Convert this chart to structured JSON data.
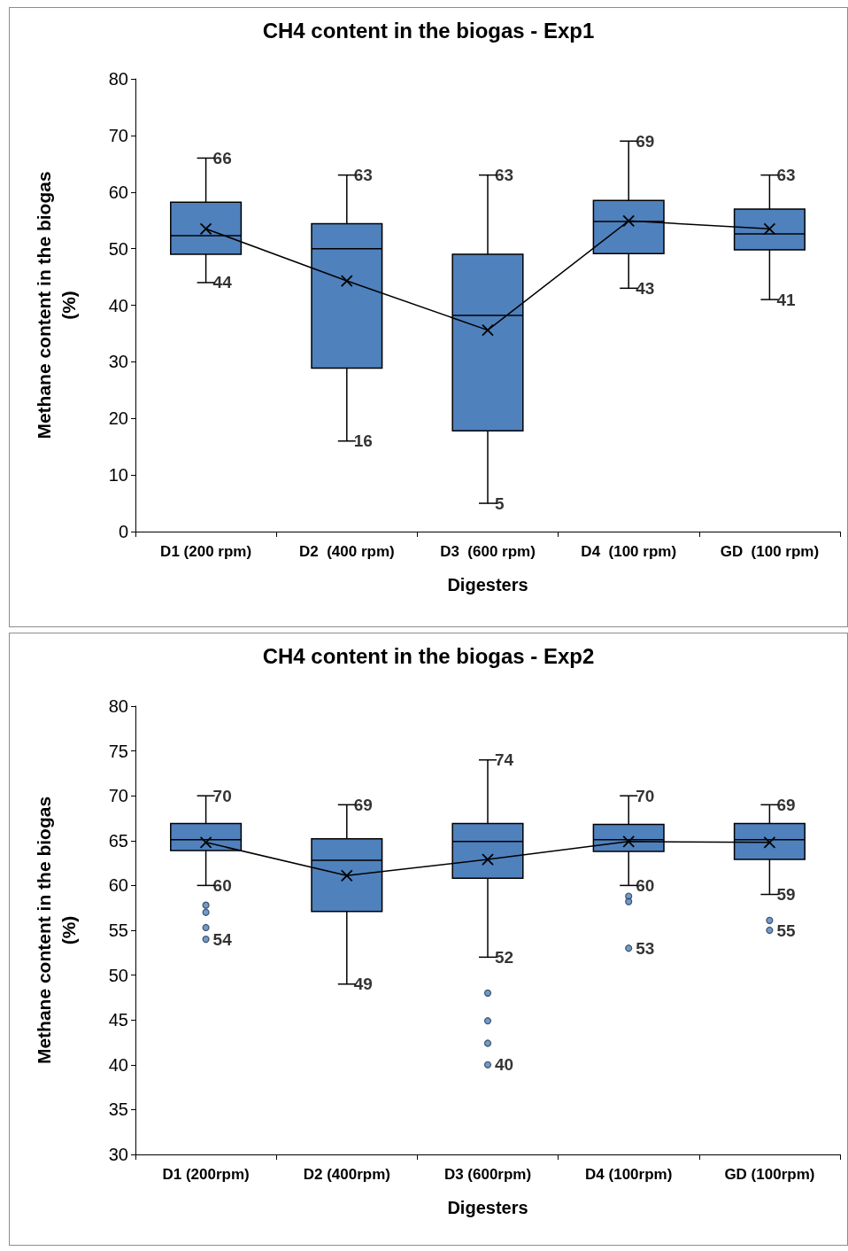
{
  "chart_data": [
    {
      "type": "box",
      "title": "CH4 content in the biogas - Exp1",
      "xlabel": "Digesters",
      "ylabel": "Methane content in the biogas (%)",
      "categories": [
        "D1 (200 rpm)",
        "D2  (400 rpm)",
        "D3  (600 rpm)",
        "D4  (100 rpm)",
        "GD  (100 rpm)"
      ],
      "ylim": [
        0,
        80
      ],
      "yticks": [
        0,
        10,
        20,
        30,
        40,
        50,
        60,
        70,
        80
      ],
      "grid": false,
      "series": [
        {
          "color": "#4f81bd",
          "boxes": [
            {
              "low": 44,
              "q1": 49,
              "median": 52.3,
              "q3": 58.2,
              "high": 66
            },
            {
              "low": 16,
              "q1": 28.9,
              "median": 50,
              "q3": 54.4,
              "high": 63
            },
            {
              "low": 5,
              "q1": 17.8,
              "median": 38.2,
              "q3": 49,
              "high": 63
            },
            {
              "low": 43,
              "q1": 49.1,
              "median": 54.8,
              "q3": 58.5,
              "high": 69
            },
            {
              "low": 41,
              "q1": 49.8,
              "median": 52.6,
              "q3": 57,
              "high": 63
            }
          ]
        },
        {
          "type": "line",
          "color": "#000000",
          "marker": "cross",
          "values": [
            53.5,
            44.3,
            35.6,
            54.9,
            53.5
          ]
        }
      ],
      "annotations": [
        {
          "text": "66",
          "x": "D1 (200 rpm)",
          "y": 66
        },
        {
          "text": "44",
          "x": "D1 (200 rpm)",
          "y": 44
        },
        {
          "text": "63",
          "x": "D2  (400 rpm)",
          "y": 63
        },
        {
          "text": "16",
          "x": "D2  (400 rpm)",
          "y": 16
        },
        {
          "text": "63",
          "x": "D3  (600 rpm)",
          "y": 63
        },
        {
          "text": "5",
          "x": "D3  (600 rpm)",
          "y": 5
        },
        {
          "text": "69",
          "x": "D4  (100 rpm)",
          "y": 69
        },
        {
          "text": "43",
          "x": "D4  (100 rpm)",
          "y": 43
        },
        {
          "text": "63",
          "x": "GD  (100 rpm)",
          "y": 63
        },
        {
          "text": "41",
          "x": "GD  (100 rpm)",
          "y": 41
        }
      ]
    },
    {
      "type": "box",
      "title": "CH4 content in the biogas - Exp2",
      "xlabel": "Digesters",
      "ylabel": "Methane content in the biogas (%)",
      "categories": [
        "D1 (200rpm)",
        "D2 (400rpm)",
        "D3 (600rpm)",
        "D4 (100rpm)",
        "GD (100rpm)"
      ],
      "ylim": [
        30,
        80
      ],
      "yticks": [
        30,
        35,
        40,
        45,
        50,
        55,
        60,
        65,
        70,
        75,
        80
      ],
      "grid": false,
      "series": [
        {
          "color": "#4f81bd",
          "boxes": [
            {
              "low": 60,
              "q1": 63.9,
              "median": 65.1,
              "q3": 66.9,
              "high": 70
            },
            {
              "low": 49,
              "q1": 57.1,
              "median": 62.8,
              "q3": 65.2,
              "high": 69
            },
            {
              "low": 52,
              "q1": 60.8,
              "median": 64.9,
              "q3": 66.9,
              "high": 74
            },
            {
              "low": 60,
              "q1": 63.8,
              "median": 65.1,
              "q3": 66.8,
              "high": 70
            },
            {
              "low": 59,
              "q1": 62.9,
              "median": 65.1,
              "q3": 66.9,
              "high": 69
            }
          ]
        },
        {
          "type": "scatter",
          "color": "#4f81bd",
          "marker": "circle",
          "x": [
            "D1 (200rpm)",
            "D1 (200rpm)",
            "D1 (200rpm)",
            "D1 (200rpm)",
            "D3 (600rpm)",
            "D3 (600rpm)",
            "D3 (600rpm)",
            "D3 (600rpm)",
            "D4 (100rpm)",
            "D4 (100rpm)",
            "D4 (100rpm)",
            "GD (100rpm)",
            "GD (100rpm)"
          ],
          "values": [
            57.8,
            57,
            55.3,
            54,
            48,
            44.9,
            42.4,
            40,
            58.8,
            58.2,
            53,
            56.1,
            55
          ]
        },
        {
          "type": "line",
          "color": "#000000",
          "marker": "cross",
          "values": [
            64.8,
            61.1,
            62.9,
            64.9,
            64.8
          ]
        }
      ],
      "annotations": [
        {
          "text": "70",
          "x": "D1 (200rpm)",
          "y": 70
        },
        {
          "text": "60",
          "x": "D1 (200rpm)",
          "y": 60
        },
        {
          "text": "54",
          "x": "D1 (200rpm)",
          "y": 54
        },
        {
          "text": "69",
          "x": "D2 (400rpm)",
          "y": 69
        },
        {
          "text": "49",
          "x": "D2 (400rpm)",
          "y": 49
        },
        {
          "text": "74",
          "x": "D3 (600rpm)",
          "y": 74
        },
        {
          "text": "52",
          "x": "D3 (600rpm)",
          "y": 52
        },
        {
          "text": "40",
          "x": "D3 (600rpm)",
          "y": 40
        },
        {
          "text": "70",
          "x": "D4 (100rpm)",
          "y": 70
        },
        {
          "text": "60",
          "x": "D4 (100rpm)",
          "y": 60
        },
        {
          "text": "53",
          "x": "D4 (100rpm)",
          "y": 53
        },
        {
          "text": "69",
          "x": "GD (100rpm)",
          "y": 69
        },
        {
          "text": "59",
          "x": "GD (100rpm)",
          "y": 59
        },
        {
          "text": "55",
          "x": "GD (100rpm)",
          "y": 55
        }
      ]
    }
  ]
}
